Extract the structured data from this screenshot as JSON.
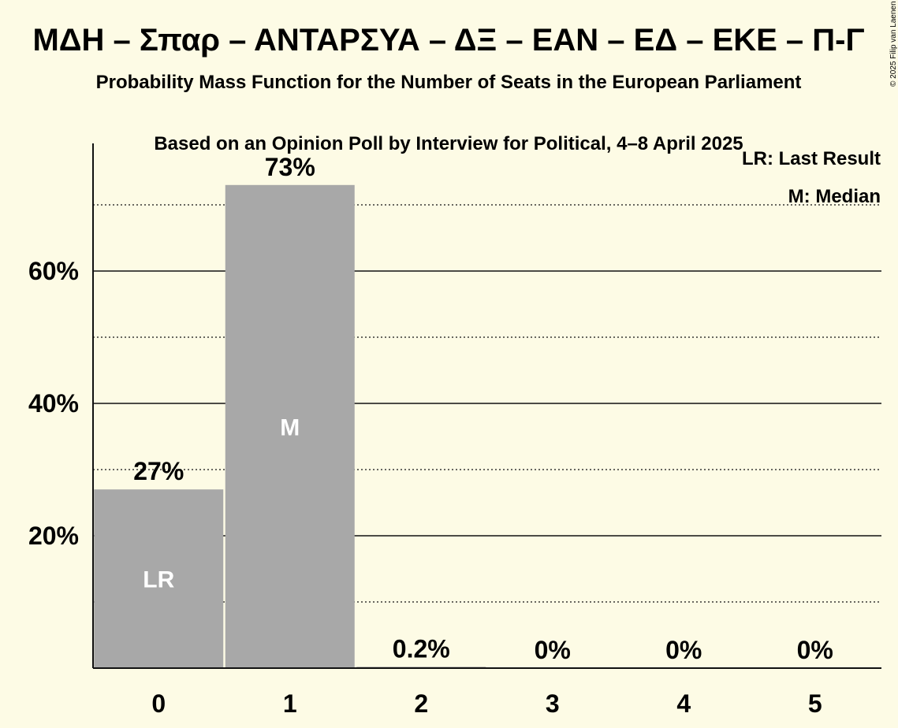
{
  "chart_data": {
    "type": "bar",
    "title": "ΜΔΗ – Σπαρ – ΑΝΤΑΡΣΥΑ – ΔΞ – ΕΑΝ – ΕΔ – ΕΚΕ – Π-Γ",
    "subtitle": "Probability Mass Function for the Number of Seats in the European Parliament",
    "subtitle2": "Based on an Opinion Poll by Interview for Political, 4–8 April 2025",
    "categories": [
      "0",
      "1",
      "2",
      "3",
      "4",
      "5"
    ],
    "values": [
      27,
      73,
      0.2,
      0,
      0,
      0
    ],
    "value_labels": [
      "27%",
      "73%",
      "0.2%",
      "0%",
      "0%",
      "0%"
    ],
    "bar_markers": [
      "LR",
      "M",
      "",
      "",
      "",
      ""
    ],
    "ylim": [
      0,
      80
    ],
    "y_ticks": [
      {
        "value": 20,
        "label": "20%"
      },
      {
        "value": 40,
        "label": "40%"
      },
      {
        "value": 60,
        "label": "60%"
      }
    ],
    "minor_gridlines": [
      10,
      30,
      50,
      70
    ],
    "legend": {
      "placement": "top-right",
      "items": [
        "LR: Last Result",
        "M: Median"
      ]
    },
    "grid": true,
    "copyright": "© 2025 Filip van Laenen",
    "colors": {
      "background": "#fdfbe5",
      "bar": "#a8a8a8",
      "text": "#111111",
      "in_bar_text": "#ffffff"
    }
  }
}
